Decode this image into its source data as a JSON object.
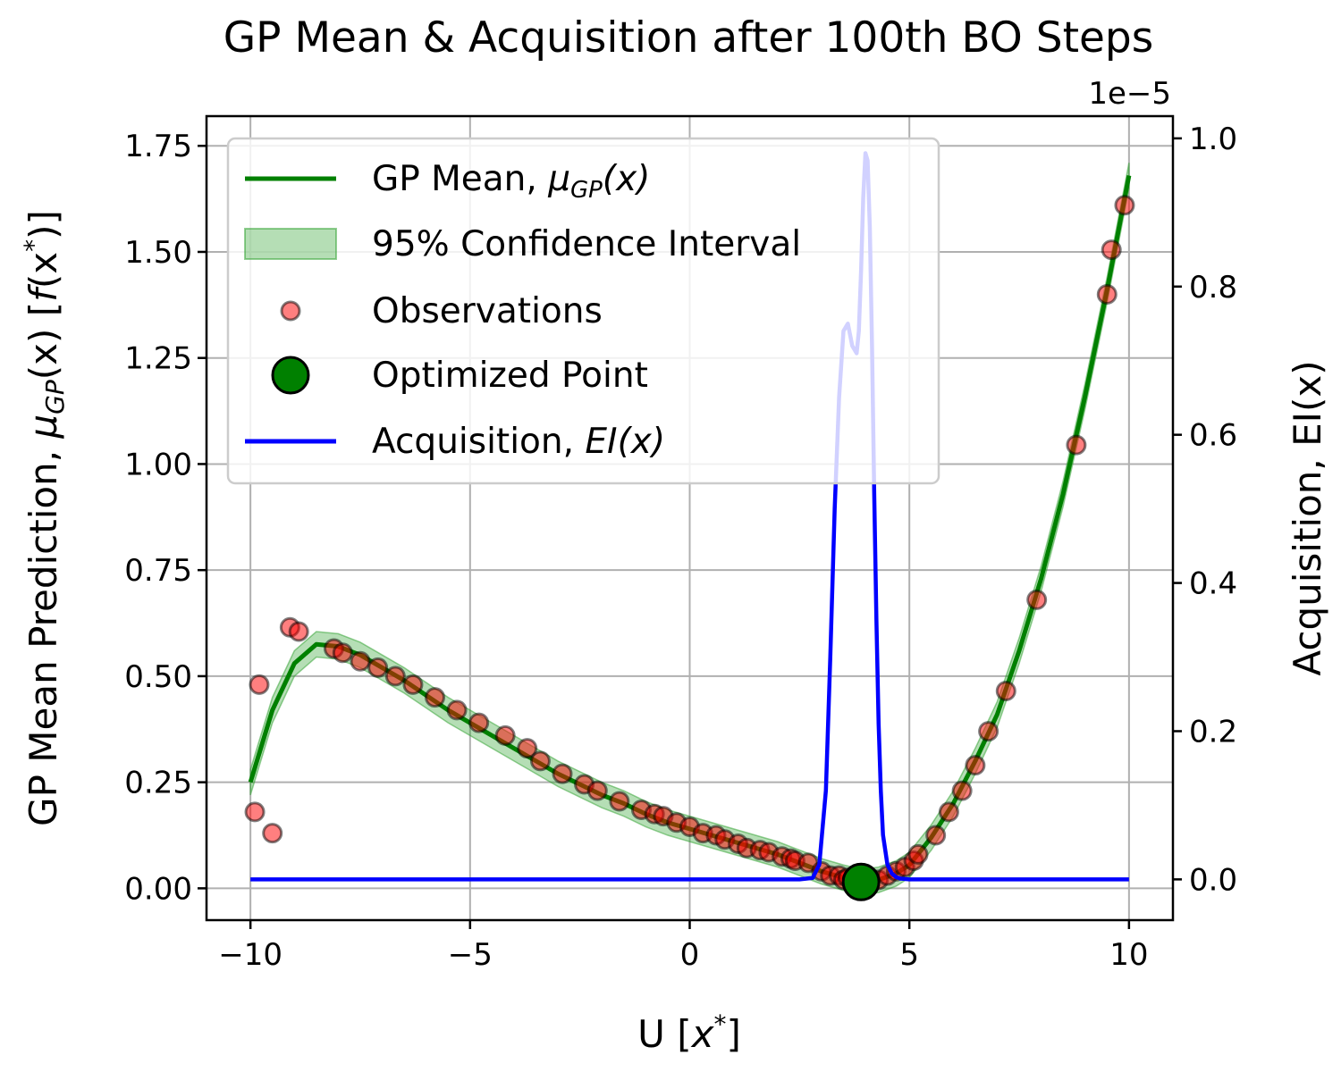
{
  "chart_data": {
    "type": "line",
    "title": "GP Mean & Acquisition after 100th BO Steps",
    "xlabel": {
      "pre": "U [",
      "var": "x",
      "sup": "*",
      "post": "]"
    },
    "ylabel_left": {
      "pre": "GP Mean Prediction, ",
      "mu": "μ",
      "sub": "GP",
      "mid": "(x) [",
      "f": "f",
      "mid2": "(x",
      "sup": "*",
      "post": ")]"
    },
    "ylabel_right": "Acquisition, EI(x)",
    "right_axis_multiplier": "1e−5",
    "xlim": [
      -11,
      11
    ],
    "ylim_left": [
      -0.075,
      1.82
    ],
    "ylim_right": [
      -0.055,
      1.03
    ],
    "xticks": [
      -10,
      -5,
      0,
      5,
      10
    ],
    "xtick_labels": [
      "−10",
      "−5",
      "0",
      "5",
      "10"
    ],
    "yticks_left": [
      0.0,
      0.25,
      0.5,
      0.75,
      1.0,
      1.25,
      1.5,
      1.75
    ],
    "ytick_labels_left": [
      "0.00",
      "0.25",
      "0.50",
      "0.75",
      "1.00",
      "1.25",
      "1.50",
      "1.75"
    ],
    "yticks_right": [
      0.0,
      0.2,
      0.4,
      0.6,
      0.8,
      1.0
    ],
    "ytick_labels_right": [
      "0.0",
      "0.2",
      "0.4",
      "0.6",
      "0.8",
      "1.0"
    ],
    "grid": true,
    "legend_position": "upper-left",
    "colors": {
      "gp_mean": "#008000",
      "ci_fill": "#2ca02c",
      "obs_fill": "#ff0000",
      "obs_edge": "#000000",
      "optimized": "#008000",
      "acquisition": "#0000ff",
      "grid": "#b0b0b0"
    },
    "legend": [
      {
        "key": "gp",
        "label": "GP Mean, ",
        "math_mu": "μ",
        "math_sub": "GP",
        "math_tail": "(x)"
      },
      {
        "key": "ci",
        "label": "95% Confidence Interval"
      },
      {
        "key": "obs",
        "label": "Observations"
      },
      {
        "key": "opt",
        "label": "Optimized Point"
      },
      {
        "key": "acq",
        "label": "Acquisition, ",
        "math_ei": "EI",
        "math_tail": "(x)"
      }
    ],
    "series": [
      {
        "name": "GP Mean",
        "axis": "left",
        "x": [
          -10,
          -9.5,
          -9,
          -8.5,
          -8,
          -7.5,
          -7,
          -6.5,
          -6,
          -5.5,
          -5,
          -4.5,
          -4,
          -3.5,
          -3,
          -2.5,
          -2,
          -1.5,
          -1,
          -0.5,
          0,
          0.5,
          1,
          1.5,
          2,
          2.5,
          3,
          3.5,
          3.9,
          4.3,
          4.7,
          5,
          5.5,
          6,
          6.5,
          7,
          7.5,
          8,
          8.5,
          9,
          9.5,
          10
        ],
        "y": [
          0.25,
          0.42,
          0.53,
          0.575,
          0.57,
          0.55,
          0.52,
          0.49,
          0.455,
          0.42,
          0.39,
          0.36,
          0.33,
          0.3,
          0.27,
          0.245,
          0.22,
          0.2,
          0.175,
          0.155,
          0.14,
          0.125,
          0.11,
          0.095,
          0.08,
          0.06,
          0.04,
          0.025,
          0.015,
          0.02,
          0.035,
          0.055,
          0.12,
          0.2,
          0.3,
          0.41,
          0.56,
          0.73,
          0.93,
          1.16,
          1.41,
          1.68
        ],
        "ci_halfwidth": 0.03
      },
      {
        "name": "Acquisition, EI(x)",
        "axis": "right",
        "x": [
          -10,
          2.5,
          2.8,
          2.95,
          3.1,
          3.2,
          3.3,
          3.4,
          3.5,
          3.6,
          3.7,
          3.8,
          3.85,
          3.9,
          3.95,
          4.0,
          4.05,
          4.1,
          4.15,
          4.2,
          4.25,
          4.3,
          4.35,
          4.4,
          4.5,
          4.6,
          4.7,
          4.8,
          5.0,
          10
        ],
        "y": [
          0.0,
          0.0,
          0.002,
          0.02,
          0.12,
          0.3,
          0.5,
          0.65,
          0.74,
          0.75,
          0.72,
          0.71,
          0.74,
          0.82,
          0.92,
          0.98,
          0.97,
          0.88,
          0.72,
          0.52,
          0.35,
          0.21,
          0.12,
          0.06,
          0.02,
          0.008,
          0.003,
          0.001,
          0.0,
          0.0
        ]
      }
    ],
    "observations": {
      "x": [
        -9.9,
        -9.8,
        -9.5,
        -9.1,
        -8.9,
        -8.1,
        -7.9,
        -7.5,
        -7.1,
        -6.7,
        -6.3,
        -5.8,
        -5.3,
        -4.8,
        -4.2,
        -3.7,
        -3.4,
        -2.9,
        -2.4,
        -2.1,
        -1.6,
        -1.1,
        -0.8,
        -0.6,
        -0.3,
        0.0,
        0.3,
        0.6,
        0.8,
        1.1,
        1.3,
        1.6,
        1.8,
        2.1,
        2.3,
        2.4,
        2.7,
        3.0,
        3.2,
        3.4,
        3.5,
        3.6,
        3.7,
        3.8,
        4.0,
        4.1,
        4.3,
        4.5,
        4.7,
        4.9,
        5.1,
        5.2,
        5.6,
        5.9,
        6.2,
        6.5,
        6.8,
        7.2,
        7.9,
        8.8,
        9.5,
        9.6,
        9.9
      ],
      "y": [
        0.18,
        0.48,
        0.13,
        0.615,
        0.605,
        0.565,
        0.555,
        0.535,
        0.52,
        0.5,
        0.48,
        0.45,
        0.42,
        0.39,
        0.36,
        0.33,
        0.3,
        0.27,
        0.245,
        0.23,
        0.205,
        0.185,
        0.175,
        0.17,
        0.155,
        0.145,
        0.13,
        0.125,
        0.115,
        0.105,
        0.095,
        0.09,
        0.085,
        0.075,
        0.07,
        0.065,
        0.06,
        0.04,
        0.03,
        0.03,
        0.02,
        0.025,
        0.02,
        0.02,
        0.015,
        0.025,
        0.02,
        0.03,
        0.04,
        0.05,
        0.065,
        0.08,
        0.125,
        0.18,
        0.23,
        0.29,
        0.37,
        0.465,
        0.68,
        1.045,
        1.4,
        1.505,
        1.61
      ]
    },
    "optimized_point": {
      "x": 3.9,
      "y": 0.015
    }
  }
}
